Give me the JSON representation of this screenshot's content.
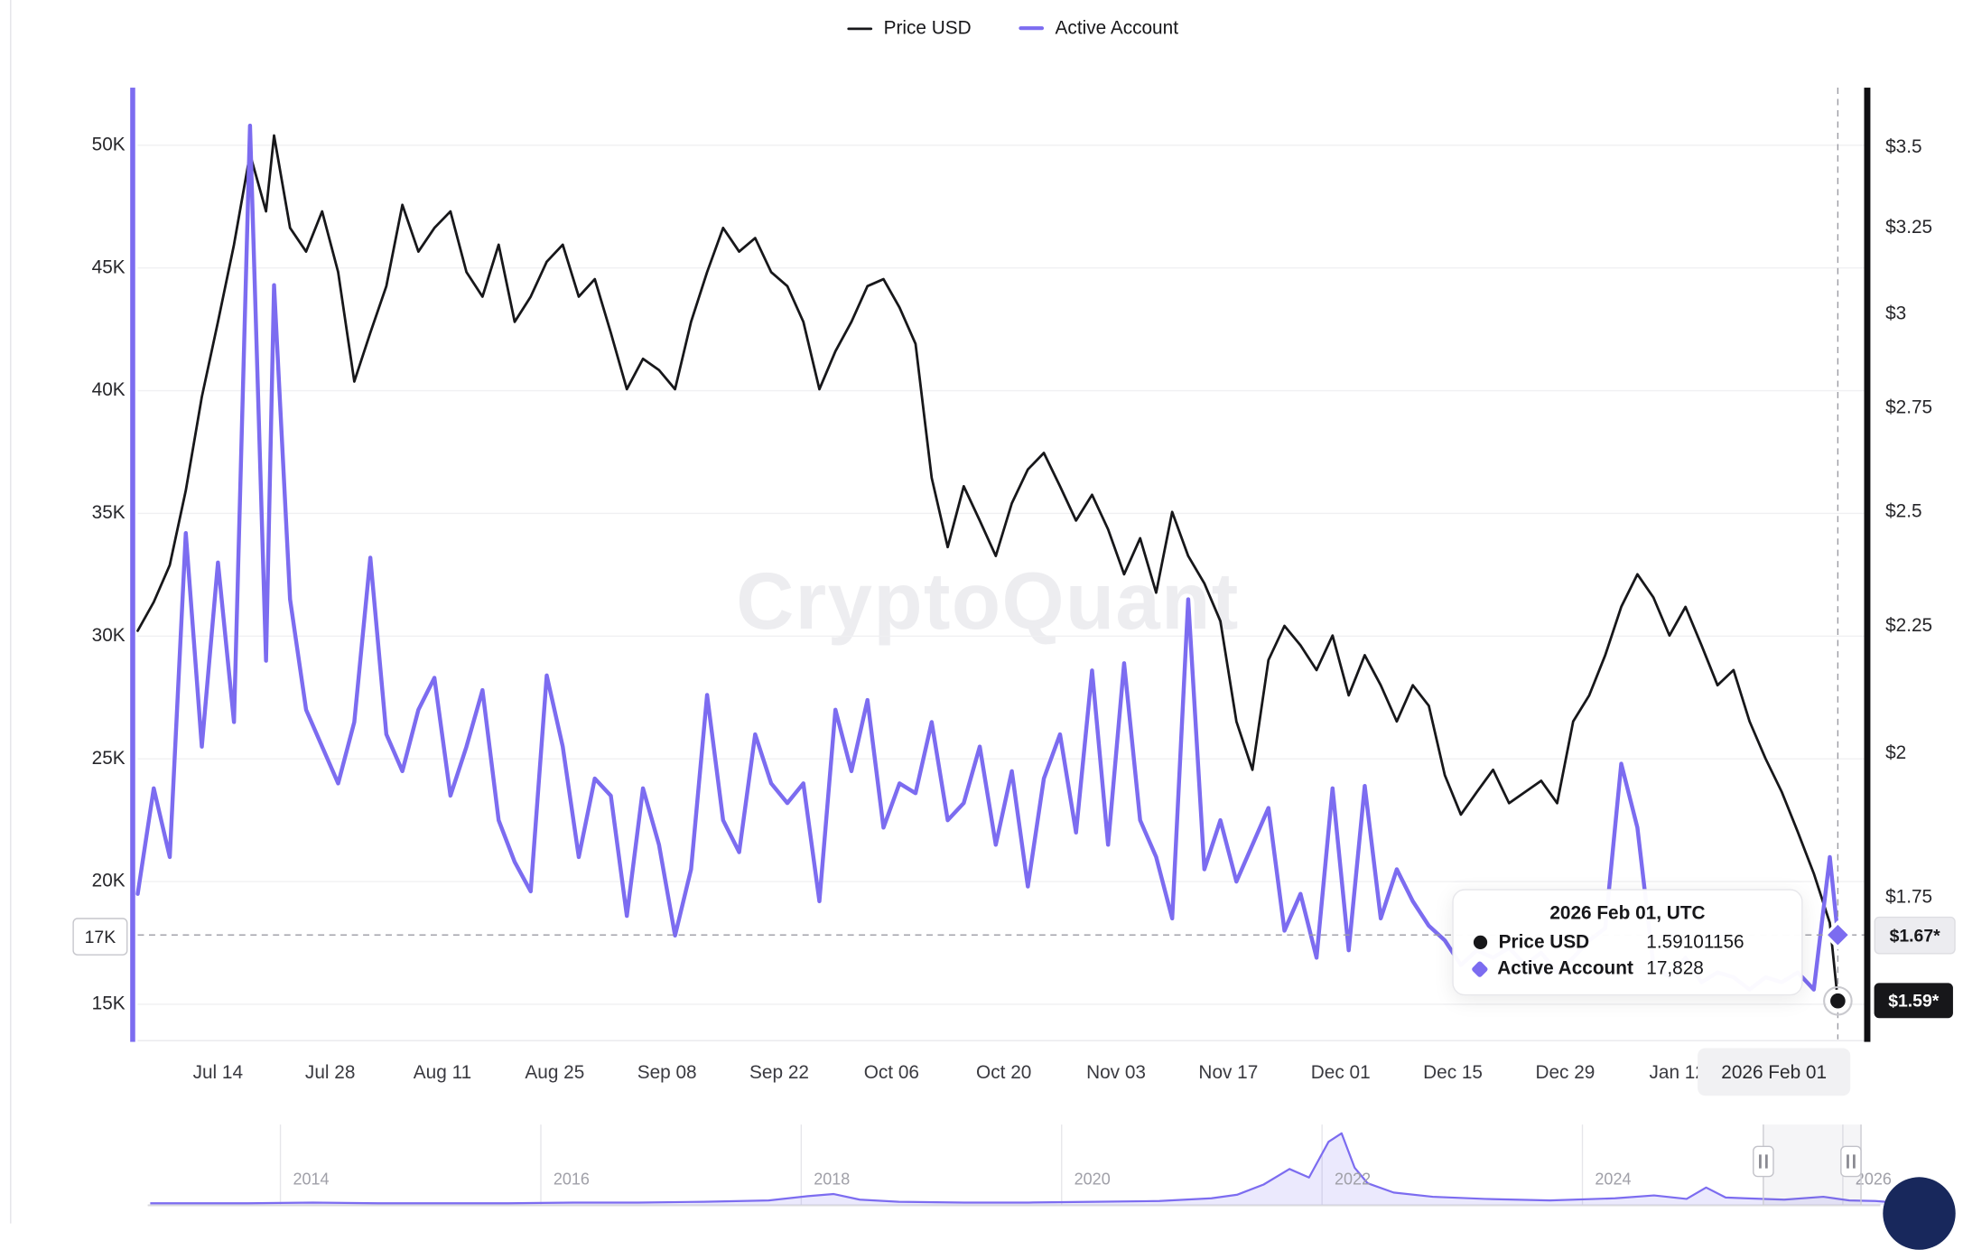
{
  "legend": {
    "price_label": "Price USD",
    "active_label": "Active Account"
  },
  "watermark": "CryptoQuant",
  "colors": {
    "price": "#17171a",
    "active": "#7c6cf0",
    "crosshair": "#9b9ba3",
    "grid": "#f0f0f2"
  },
  "badges": {
    "left_current": "17K",
    "right_upper": "$1.67*",
    "right_lower": "$1.59*"
  },
  "tooltip": {
    "title": "2026 Feb 01",
    "title_suffix": ", UTC",
    "rows": [
      {
        "label": "Price USD",
        "value": "1.59101156"
      },
      {
        "label": "Active Account",
        "value": "17,828"
      }
    ]
  },
  "x_axis": {
    "end_label": "2026 Feb 01",
    "ticks": [
      {
        "date": "2025-07-14",
        "label": "Jul 14"
      },
      {
        "date": "2025-07-28",
        "label": "Jul 28"
      },
      {
        "date": "2025-08-11",
        "label": "Aug 11"
      },
      {
        "date": "2025-08-25",
        "label": "Aug 25"
      },
      {
        "date": "2025-09-08",
        "label": "Sep 08"
      },
      {
        "date": "2025-09-22",
        "label": "Sep 22"
      },
      {
        "date": "2025-10-06",
        "label": "Oct 06"
      },
      {
        "date": "2025-10-20",
        "label": "Oct 20"
      },
      {
        "date": "2025-11-03",
        "label": "Nov 03"
      },
      {
        "date": "2025-11-17",
        "label": "Nov 17"
      },
      {
        "date": "2025-12-01",
        "label": "Dec 01"
      },
      {
        "date": "2025-12-15",
        "label": "Dec 15"
      },
      {
        "date": "2025-12-29",
        "label": "Dec 29"
      },
      {
        "date": "2026-01-12",
        "label": "Jan 12"
      }
    ]
  },
  "navigator": {
    "years": [
      "2014",
      "2016",
      "2018",
      "2020",
      "2022",
      "2024",
      "2026"
    ]
  },
  "chart_data": {
    "type": "line",
    "title": "",
    "legend_position": "top-center",
    "grid": true,
    "left_axis": {
      "label": "Active Account",
      "scale": "linear",
      "values": [
        50000,
        45000,
        40000,
        35000,
        30000,
        25000,
        20000,
        15000
      ],
      "labels": [
        "50K",
        "45K",
        "40K",
        "35K",
        "30K",
        "25K",
        "20K",
        "15K"
      ],
      "range": [
        13500,
        52000
      ]
    },
    "right_axis": {
      "label": "Price USD",
      "scale": "log",
      "values": [
        3.5,
        3.25,
        3,
        2.75,
        2.5,
        2.25,
        2,
        1.75
      ],
      "labels": [
        "$3.5",
        "$3.25",
        "$3",
        "$2.75",
        "$2.5",
        "$2.25",
        "$2",
        "$1.75"
      ],
      "range": [
        1.55,
        3.6
      ]
    },
    "x": [
      "2025-07-04",
      "2025-07-06",
      "2025-07-08",
      "2025-07-10",
      "2025-07-12",
      "2025-07-14",
      "2025-07-16",
      "2025-07-18",
      "2025-07-20",
      "2025-07-21",
      "2025-07-23",
      "2025-07-25",
      "2025-07-27",
      "2025-07-29",
      "2025-07-31",
      "2025-08-02",
      "2025-08-04",
      "2025-08-06",
      "2025-08-08",
      "2025-08-10",
      "2025-08-12",
      "2025-08-14",
      "2025-08-16",
      "2025-08-18",
      "2025-08-20",
      "2025-08-22",
      "2025-08-24",
      "2025-08-26",
      "2025-08-28",
      "2025-08-30",
      "2025-09-01",
      "2025-09-03",
      "2025-09-05",
      "2025-09-07",
      "2025-09-09",
      "2025-09-11",
      "2025-09-13",
      "2025-09-15",
      "2025-09-17",
      "2025-09-19",
      "2025-09-21",
      "2025-09-23",
      "2025-09-25",
      "2025-09-27",
      "2025-09-29",
      "2025-10-01",
      "2025-10-03",
      "2025-10-05",
      "2025-10-07",
      "2025-10-09",
      "2025-10-11",
      "2025-10-13",
      "2025-10-15",
      "2025-10-17",
      "2025-10-19",
      "2025-10-21",
      "2025-10-23",
      "2025-10-25",
      "2025-10-27",
      "2025-10-29",
      "2025-10-31",
      "2025-11-02",
      "2025-11-04",
      "2025-11-06",
      "2025-11-08",
      "2025-11-10",
      "2025-11-12",
      "2025-11-14",
      "2025-11-16",
      "2025-11-18",
      "2025-11-20",
      "2025-11-22",
      "2025-11-24",
      "2025-11-26",
      "2025-11-28",
      "2025-11-30",
      "2025-12-02",
      "2025-12-04",
      "2025-12-06",
      "2025-12-08",
      "2025-12-10",
      "2025-12-12",
      "2025-12-14",
      "2025-12-16",
      "2025-12-18",
      "2025-12-20",
      "2025-12-22",
      "2025-12-24",
      "2025-12-26",
      "2025-12-28",
      "2025-12-30",
      "2026-01-01",
      "2026-01-03",
      "2026-01-05",
      "2026-01-07",
      "2026-01-09",
      "2026-01-11",
      "2026-01-13",
      "2026-01-15",
      "2026-01-17",
      "2026-01-19",
      "2026-01-21",
      "2026-01-23",
      "2026-01-25",
      "2026-01-27",
      "2026-01-29",
      "2026-01-31",
      "2026-02-01"
    ],
    "series": [
      {
        "name": "Price USD",
        "axis": "right",
        "color": "#17171a",
        "values": [
          2.24,
          2.3,
          2.38,
          2.55,
          2.78,
          2.98,
          3.2,
          3.48,
          3.3,
          3.54,
          3.25,
          3.18,
          3.3,
          3.12,
          2.82,
          2.95,
          3.08,
          3.32,
          3.18,
          3.25,
          3.3,
          3.12,
          3.05,
          3.2,
          2.98,
          3.05,
          3.15,
          3.2,
          3.05,
          3.1,
          2.95,
          2.8,
          2.88,
          2.85,
          2.8,
          2.98,
          3.12,
          3.25,
          3.18,
          3.22,
          3.12,
          3.08,
          2.98,
          2.8,
          2.9,
          2.98,
          3.08,
          3.1,
          3.02,
          2.92,
          2.58,
          2.42,
          2.56,
          2.48,
          2.4,
          2.52,
          2.6,
          2.64,
          2.56,
          2.48,
          2.54,
          2.46,
          2.36,
          2.44,
          2.32,
          2.5,
          2.4,
          2.34,
          2.26,
          2.06,
          1.97,
          2.18,
          2.25,
          2.21,
          2.16,
          2.23,
          2.11,
          2.19,
          2.13,
          2.06,
          2.13,
          2.09,
          1.96,
          1.89,
          1.93,
          1.97,
          1.91,
          1.93,
          1.95,
          1.91,
          2.06,
          2.11,
          2.19,
          2.29,
          2.36,
          2.31,
          2.23,
          2.29,
          2.21,
          2.13,
          2.16,
          2.06,
          1.99,
          1.93,
          1.86,
          1.79,
          1.71,
          1.59101156
        ]
      },
      {
        "name": "Active Account",
        "axis": "left",
        "color": "#7c6cf0",
        "values": [
          19500,
          23800,
          21000,
          34200,
          25500,
          33000,
          26500,
          50800,
          29000,
          44300,
          31500,
          27000,
          25500,
          24000,
          26500,
          33200,
          26000,
          24500,
          27000,
          28300,
          23500,
          25500,
          27800,
          22500,
          20800,
          19600,
          28400,
          25500,
          21000,
          24200,
          23500,
          18600,
          23800,
          21500,
          17800,
          20500,
          27600,
          22500,
          21200,
          26000,
          24000,
          23200,
          24000,
          19200,
          27000,
          24500,
          27400,
          22200,
          24000,
          23600,
          26500,
          22500,
          23200,
          25500,
          21500,
          24500,
          19800,
          24200,
          26000,
          22000,
          28600,
          21500,
          28900,
          22500,
          21000,
          18500,
          31500,
          20500,
          22500,
          20000,
          21500,
          23000,
          18000,
          19500,
          16900,
          23800,
          17200,
          23900,
          18500,
          20500,
          19200,
          18200,
          17600,
          16600,
          17200,
          16900,
          17300,
          16600,
          17100,
          16300,
          16900,
          17600,
          18100,
          24800,
          22200,
          16600,
          16100,
          16900,
          15900,
          16300,
          16100,
          15600,
          16100,
          15900,
          16300,
          15600,
          21000,
          17828
        ]
      }
    ],
    "crosshair": {
      "date": "2026-02-01",
      "price_value": 1.59101156,
      "active_value": 17828,
      "date_label": "2026 Feb 01"
    },
    "navigator": {
      "type": "area",
      "x": [
        2012.75,
        2013.5,
        2014,
        2014.5,
        2015,
        2015.5,
        2016,
        2016.5,
        2017,
        2017.5,
        2017.8,
        2018.0,
        2018.2,
        2018.5,
        2019,
        2019.5,
        2020,
        2020.5,
        2020.9,
        2021.1,
        2021.3,
        2021.5,
        2021.65,
        2021.8,
        2021.9,
        2022.0,
        2022.1,
        2022.3,
        2022.6,
        2023,
        2023.5,
        2024,
        2024.3,
        2024.55,
        2024.7,
        2024.85,
        2025,
        2025.3,
        2025.6,
        2025.8,
        2026.0,
        2026.08
      ],
      "values": [
        2,
        2,
        3,
        2,
        2,
        2,
        3,
        3,
        4,
        6,
        12,
        15,
        7,
        4,
        3,
        3,
        4,
        5,
        9,
        14,
        28,
        50,
        38,
        88,
        100,
        52,
        30,
        17,
        11,
        8,
        6,
        9,
        13,
        8,
        24,
        10,
        9,
        7,
        11,
        6,
        5,
        4
      ]
    }
  }
}
